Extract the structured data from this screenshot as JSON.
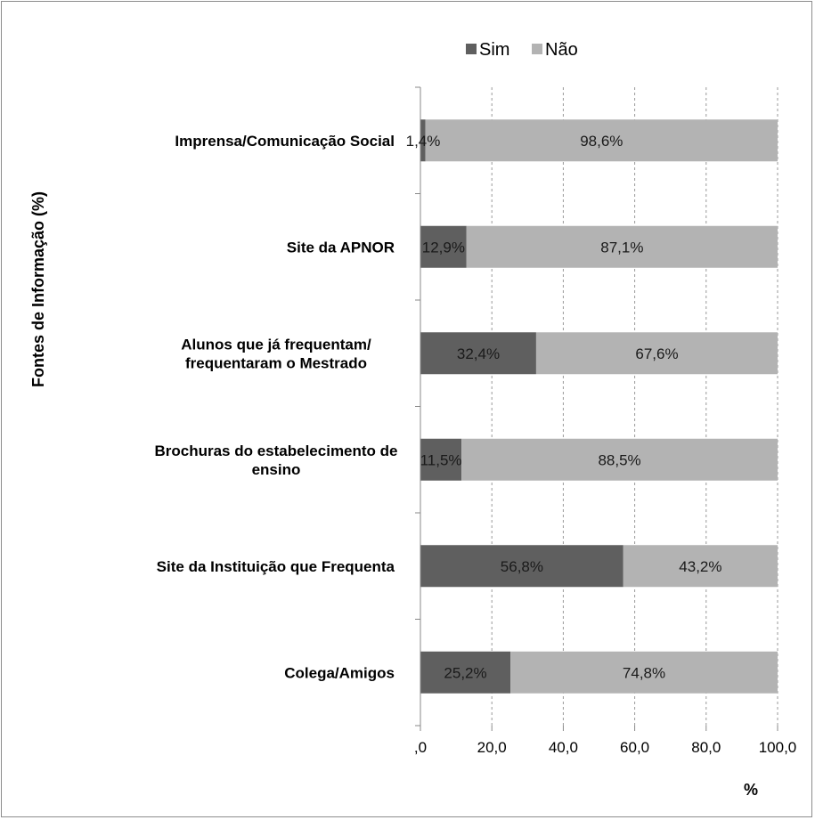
{
  "chart_data": {
    "type": "bar",
    "orientation": "horizontal",
    "stacked": true,
    "categories": [
      [
        "Imprensa/Comunicação Social"
      ],
      [
        "Site da APNOR"
      ],
      [
        "Alunos que já frequentam/",
        "frequentaram o Mestrado"
      ],
      [
        "Brochuras do estabelecimento de",
        "ensino"
      ],
      [
        "Site da Instituição que Frequenta"
      ],
      [
        "Colega/Amigos"
      ]
    ],
    "series": [
      {
        "name": "Sim",
        "color": "#5f5f5f",
        "values": [
          1.4,
          12.9,
          32.4,
          11.5,
          56.8,
          25.2
        ],
        "labels": [
          "1,4%",
          "12,9%",
          "32,4%",
          "11,5%",
          "56,8%",
          "25,2%"
        ]
      },
      {
        "name": "Não",
        "color": "#b3b3b3",
        "values": [
          98.6,
          87.1,
          67.6,
          88.5,
          43.2,
          74.8
        ],
        "labels": [
          "98,6%",
          "87,1%",
          "67,6%",
          "88,5%",
          "43,2%",
          "74,8%"
        ]
      }
    ],
    "xlim": [
      0,
      100
    ],
    "xticks": [
      0,
      20,
      40,
      60,
      80,
      100
    ],
    "xtick_labels": [
      ",0",
      "20,0",
      "40,0",
      "60,0",
      "80,0",
      "100,0"
    ],
    "xlabel": "%",
    "ylabel": "Fontes  de Informação (%)",
    "legend_position": "top",
    "grid": "vertical dashed"
  }
}
